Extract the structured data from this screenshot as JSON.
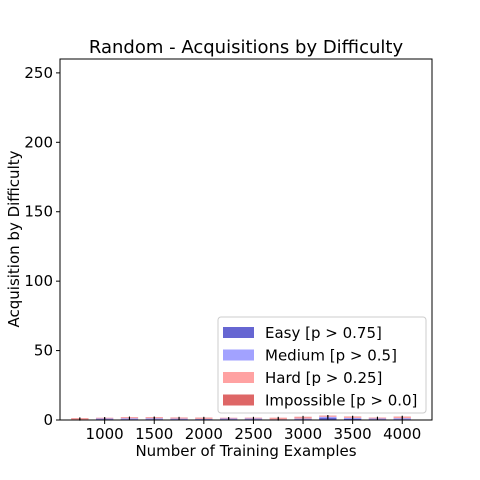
{
  "chart_data": {
    "type": "bar",
    "stacked": true,
    "title": "Random - Acquisitions by Difficulty",
    "xlabel": "Number of Training Examples",
    "ylabel": "Acquisition by Difficulty",
    "xlim": [
      550,
      4300
    ],
    "ylim": [
      0,
      260
    ],
    "xticks": [
      1000,
      1500,
      2000,
      2500,
      3000,
      3500,
      4000
    ],
    "yticks": [
      0,
      50,
      100,
      150,
      200,
      250
    ],
    "grid": false,
    "legend_position": "lower right",
    "x": [
      750,
      1000,
      1250,
      1500,
      1750,
      2000,
      2250,
      2500,
      2750,
      3000,
      3250,
      3500,
      3750,
      4000
    ],
    "series": [
      {
        "name": "Easy [p > 0.75]",
        "color": "#0000b4",
        "values": [
          0.0,
          0.6,
          0.5,
          0.5,
          0.3,
          0.3,
          0.5,
          0.5,
          0.0,
          0.5,
          1.5,
          0.8,
          0.5,
          0.5
        ],
        "error": [
          0.5,
          0.7,
          0.7,
          0.7,
          0.5,
          0.5,
          0.7,
          0.7,
          0.5,
          0.7,
          1.0,
          0.8,
          0.7,
          0.7
        ]
      },
      {
        "name": "Medium [p > 0.5]",
        "color": "#6464ff",
        "values": [
          0.3,
          0.5,
          0.7,
          0.7,
          0.7,
          0.5,
          0.6,
          0.6,
          0.5,
          0.5,
          0.8,
          0.7,
          0.6,
          0.8
        ],
        "error": [
          0.6,
          0.7,
          0.8,
          0.8,
          0.8,
          0.7,
          0.8,
          0.8,
          0.7,
          0.7,
          0.9,
          0.8,
          0.8,
          0.9
        ]
      },
      {
        "name": "Hard [p > 0.25]",
        "color": "#ff6464",
        "values": [
          0.8,
          0.4,
          0.6,
          0.6,
          0.6,
          0.7,
          0.4,
          0.5,
          0.9,
          1.0,
          0.6,
          0.8,
          0.6,
          0.9
        ],
        "error": [
          0.8,
          0.6,
          0.7,
          0.7,
          0.7,
          0.8,
          0.6,
          0.7,
          0.9,
          1.0,
          0.7,
          0.8,
          0.7,
          0.9
        ]
      },
      {
        "name": "Impossible [p > 0.0]",
        "color": "#c80000",
        "values": [
          0.2,
          0.1,
          0.2,
          0.2,
          0.2,
          0.2,
          0.1,
          0.1,
          0.2,
          0.3,
          0.2,
          0.2,
          0.1,
          0.2
        ],
        "error": [
          0.3,
          0.3,
          0.3,
          0.3,
          0.3,
          0.3,
          0.3,
          0.3,
          0.3,
          0.4,
          0.3,
          0.3,
          0.3,
          0.3
        ]
      }
    ]
  }
}
